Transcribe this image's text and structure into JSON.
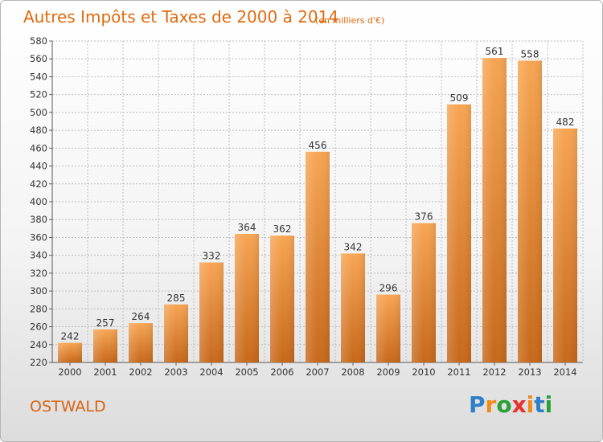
{
  "title": "Autres Impôts et Taxes de 2000 à 2014",
  "subtitle": "(en milliers d'€)",
  "place": "OSTWALD",
  "logo": {
    "letters": [
      "P",
      "r",
      "o",
      "x",
      "i",
      "t",
      "i"
    ],
    "colors": [
      "#2f7fc7",
      "#f28a1a",
      "#2aa038",
      "#e8322b",
      "#f28a1a",
      "#2f7fc7",
      "#2aa038"
    ]
  },
  "colors": {
    "bar_top": "#f7a553",
    "bar_bottom": "#c7681a",
    "title": "#e06a0e",
    "grid": "#bdbdbd"
  },
  "chart_data": {
    "type": "bar",
    "title": "Autres Impôts et Taxes de 2000 à 2014",
    "subtitle": "(en milliers d'€)",
    "categories": [
      "2000",
      "2001",
      "2002",
      "2003",
      "2004",
      "2005",
      "2006",
      "2007",
      "2008",
      "2009",
      "2010",
      "2011",
      "2012",
      "2013",
      "2014"
    ],
    "values": [
      242,
      257,
      264,
      285,
      332,
      364,
      362,
      456,
      342,
      296,
      376,
      509,
      561,
      558,
      482
    ],
    "ylim": [
      220,
      580
    ],
    "yticks": [
      220,
      240,
      260,
      280,
      300,
      320,
      340,
      360,
      380,
      400,
      420,
      440,
      460,
      480,
      500,
      520,
      540,
      560,
      580
    ],
    "grid": true,
    "legend": "none"
  }
}
